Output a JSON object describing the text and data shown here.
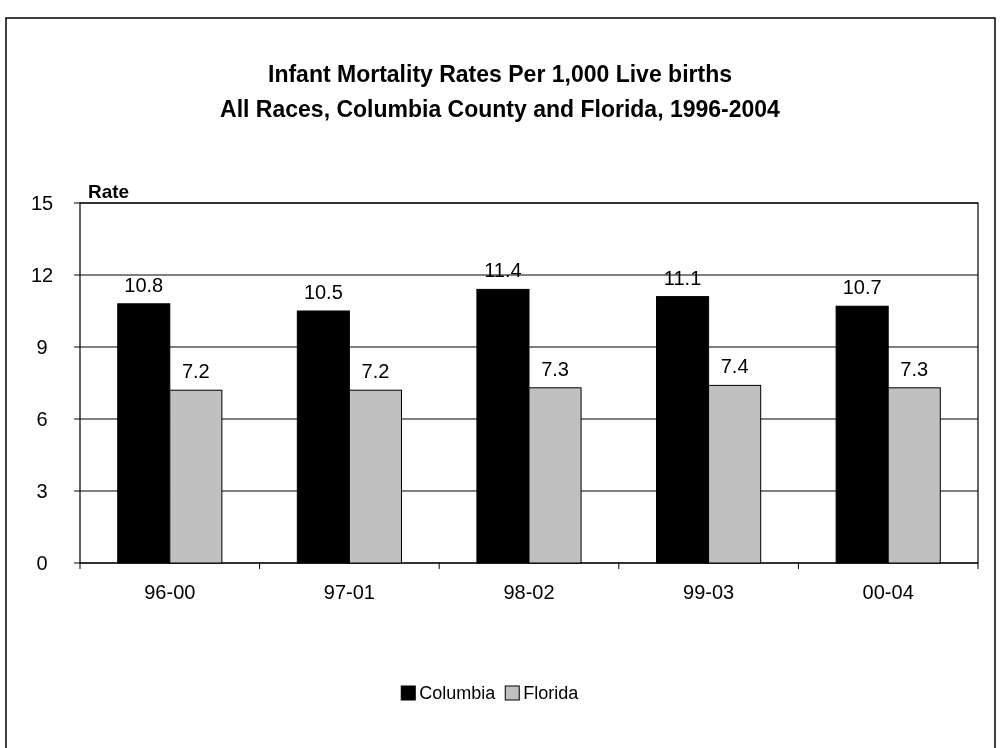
{
  "chart_data": {
    "type": "bar",
    "title": "Infant Mortality Rates Per 1,000 Live births\nAll Races, Columbia County and Florida, 1996-2004",
    "ylabel": "Rate",
    "categories": [
      "96-00",
      "97-01",
      "98-02",
      "99-03",
      "00-04"
    ],
    "series": [
      {
        "name": "Columbia",
        "color": "#000000",
        "values": [
          10.8,
          10.5,
          11.4,
          11.1,
          10.7
        ]
      },
      {
        "name": "Florida",
        "color": "#c0c0c0",
        "values": [
          7.2,
          7.2,
          7.3,
          7.4,
          7.3
        ]
      }
    ],
    "ylim": [
      0,
      15
    ],
    "yticks": [
      0,
      3,
      6,
      9,
      12,
      15
    ],
    "grid": "y",
    "data_labels": true,
    "legend": "bottom"
  }
}
